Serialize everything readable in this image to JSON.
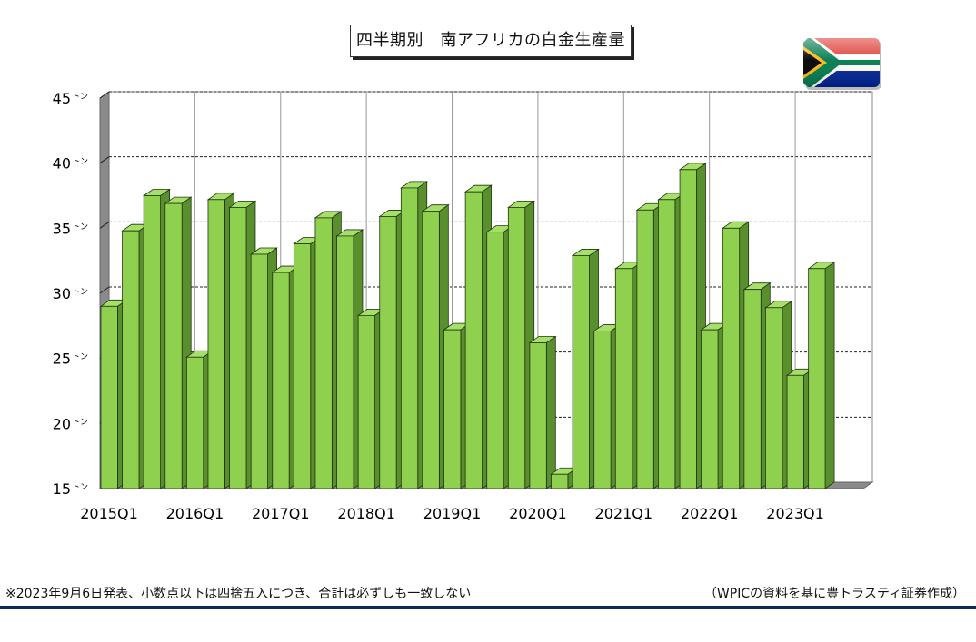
{
  "title": "四半期別　南アフリカの白金生産量",
  "footnote": "※2023年9月6日発表、小数点以下は四捨五入につき、合計は必ずしも一致しない",
  "source": "（WPICの資料を基に豊トラスティ証券作成）",
  "flag_icon": "south-africa-flag-icon",
  "colors": {
    "bar_front": "#8fd14f",
    "bar_side": "#5a8f2e",
    "bar_top": "#a7e068",
    "wall": "#ffffff",
    "floor": "#8a8a8a"
  },
  "chart_data": {
    "type": "bar",
    "ylim": [
      15,
      45
    ],
    "ytick_values": [
      15,
      20,
      25,
      30,
      35,
      40,
      45
    ],
    "y_unit": "トン",
    "xtick_labels": [
      "2015Q1",
      "2016Q1",
      "2017Q1",
      "2018Q1",
      "2019Q1",
      "2020Q1",
      "2021Q1",
      "2022Q1",
      "2023Q1"
    ],
    "xtick_label_every": 4,
    "grid": true,
    "categories": [
      "2015Q1",
      "2015Q2",
      "2015Q3",
      "2015Q4",
      "2016Q1",
      "2016Q2",
      "2016Q3",
      "2016Q4",
      "2017Q1",
      "2017Q2",
      "2017Q3",
      "2017Q4",
      "2018Q1",
      "2018Q2",
      "2018Q3",
      "2018Q4",
      "2019Q1",
      "2019Q2",
      "2019Q3",
      "2019Q4",
      "2020Q1",
      "2020Q2",
      "2020Q3",
      "2020Q4",
      "2021Q1",
      "2021Q2",
      "2021Q3",
      "2021Q4",
      "2022Q1",
      "2022Q2",
      "2022Q3",
      "2022Q4",
      "2023Q1",
      "2023Q2"
    ],
    "values": [
      29.0,
      34.8,
      37.5,
      36.9,
      25.1,
      37.2,
      36.6,
      33.0,
      31.6,
      33.8,
      35.8,
      34.4,
      28.3,
      35.9,
      38.1,
      36.3,
      27.2,
      37.8,
      34.7,
      36.6,
      26.2,
      16.1,
      32.9,
      27.1,
      31.9,
      36.4,
      37.2,
      39.5,
      27.2,
      35.0,
      30.3,
      28.9,
      23.7,
      31.9
    ]
  }
}
